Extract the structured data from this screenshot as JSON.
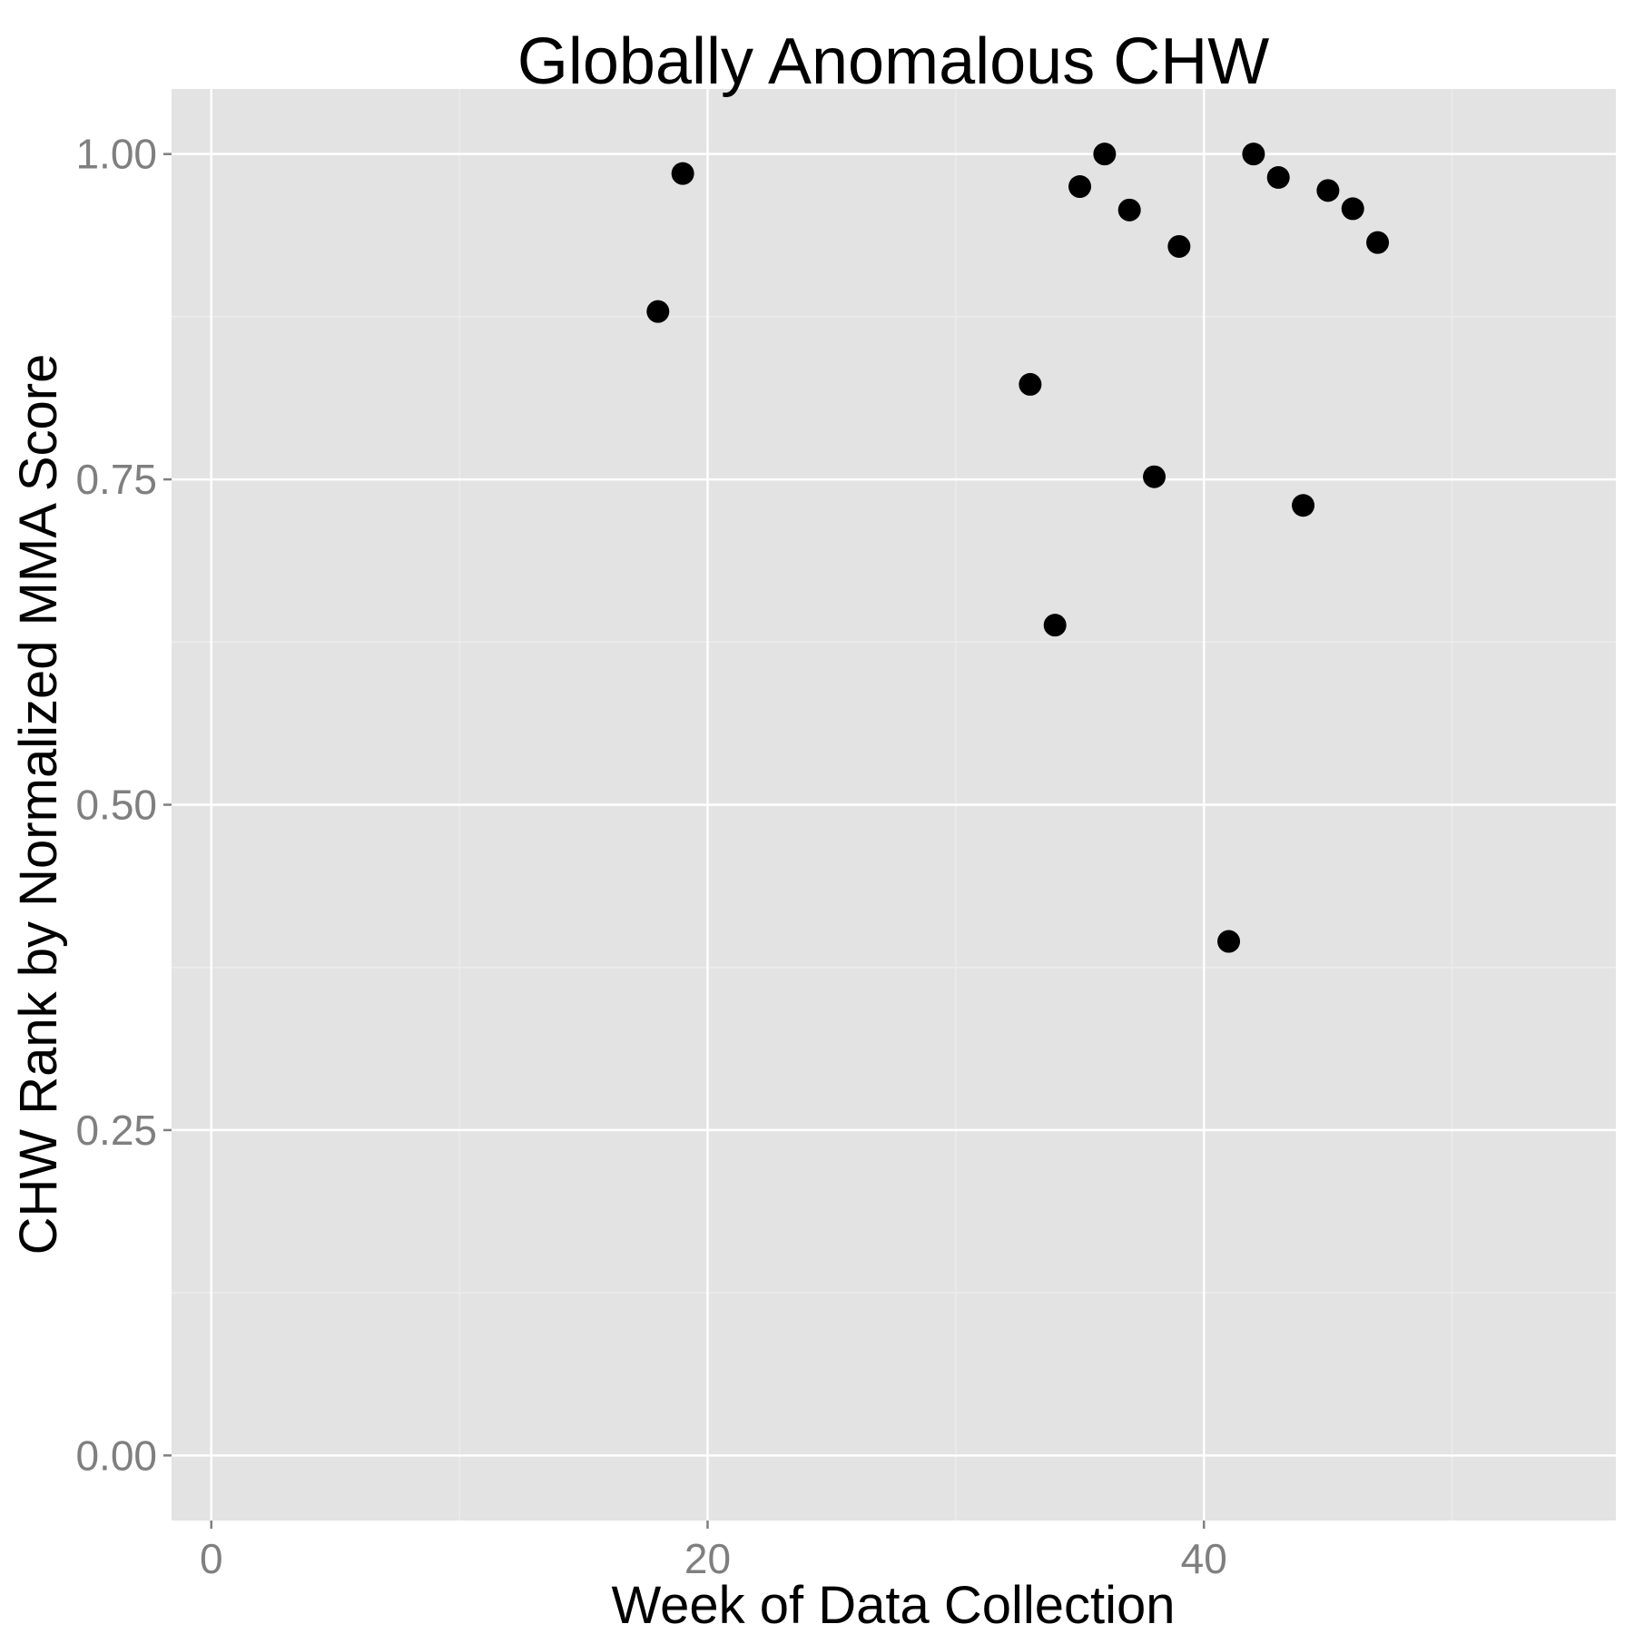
{
  "chart_data": {
    "type": "scatter",
    "title": "Globally Anomalous CHW",
    "xlabel": "Week of Data Collection",
    "ylabel": "CHW Rank by Normalized MMA Score",
    "xlim": [
      -1.6,
      56.6
    ],
    "ylim": [
      -0.05,
      1.05
    ],
    "x_ticks": [
      0,
      20,
      40
    ],
    "x_tick_labels": [
      "0",
      "20",
      "40"
    ],
    "x_minor_ticks": [
      10,
      30,
      50
    ],
    "y_ticks": [
      0,
      0.25,
      0.5,
      0.75,
      1.0
    ],
    "y_tick_labels": [
      "0.00",
      "0.25",
      "0.50",
      "0.75",
      "1.00"
    ],
    "y_minor_ticks": [
      0.125,
      0.375,
      0.625,
      0.875
    ],
    "grid": true,
    "panel_color": "#e3e3e3",
    "grid_color": "#ffffff",
    "point_color": "#000000",
    "series": [
      {
        "x": [
          18,
          19,
          33,
          34,
          35,
          36,
          37,
          38,
          39,
          41,
          42,
          43,
          44,
          45,
          46,
          47
        ],
        "y": [
          0.879,
          0.985,
          0.823,
          0.638,
          0.975,
          1.0,
          0.957,
          0.752,
          0.929,
          0.395,
          1.0,
          0.982,
          0.73,
          0.972,
          0.958,
          0.932
        ]
      }
    ]
  }
}
